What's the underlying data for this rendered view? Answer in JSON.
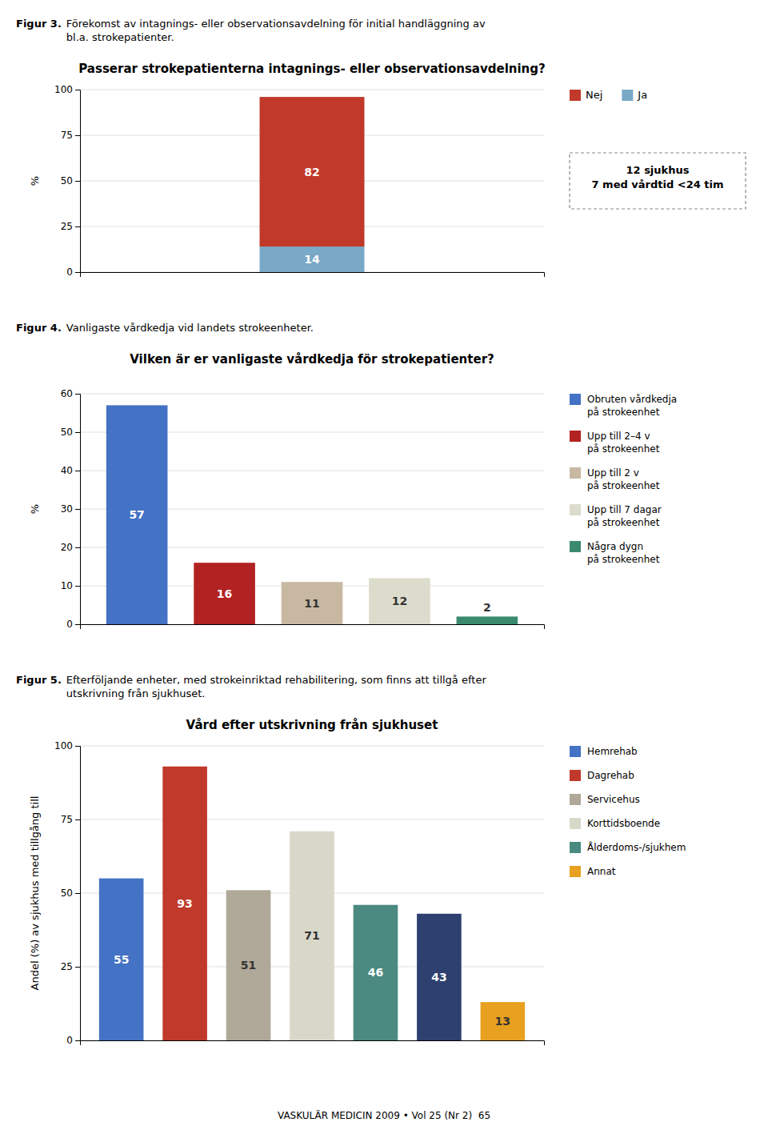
{
  "chart_data": [
    {
      "type": "bar",
      "stacked": true,
      "figure_label": "Figur 3.",
      "caption": "Förekomst av intagnings- eller observationsavdelning för initial handläggning av\nbl.a. strokepatienter.",
      "title": "Passerar strokepatienterna intagnings- eller observationsavdelning?",
      "ylabel": "%",
      "categories": [
        null
      ],
      "series": [
        {
          "name": "Ja",
          "color": "#7aa8c7",
          "values": [
            14
          ]
        },
        {
          "name": "Nej",
          "color": "#c0392b",
          "values": [
            82
          ]
        }
      ],
      "ylim": [
        0,
        100
      ],
      "yticks": [
        0,
        25,
        50,
        75,
        100
      ],
      "grid": true,
      "data_labels": true,
      "tick_labels": "y",
      "legend": "upper right",
      "annotations": [
        "12 sjukhus\n7 med vårdtid <24 tim"
      ]
    },
    {
      "type": "bar",
      "figure_label": "Figur 4.",
      "caption": "Vanligaste vårdkedja vid landets strokeenheter.",
      "title": "Vilken är er vanligaste vårdkedja för strokepatienter?",
      "ylabel": "%",
      "categories": [
        "Obruten vårdkedja\npå strokeenhet",
        "Upp till 2–4 v\npå strokeenhet",
        "Upp till 2 v\npå strokeenhet",
        "Upp till 7 dagar\npå strokeenhet",
        "Några dygn\npå strokeenhet"
      ],
      "values": [
        57,
        16,
        11,
        12,
        2
      ],
      "colors": [
        "#4472c4",
        "#b22222",
        "#c8b8a2",
        "#dcdccc",
        "#3a8a6e"
      ],
      "ylim": [
        0,
        60
      ],
      "yticks": [
        0,
        10,
        20,
        30,
        40,
        50,
        60
      ],
      "grid": true,
      "data_labels": true,
      "tick_labels": "y",
      "legend": "upper right"
    },
    {
      "type": "bar",
      "figure_label": "Figur 5.",
      "caption": "Efterföljande enheter, med strokeinriktad rehabilitering, som finns att tillgå efter\nutskrivning från sjukhuset.",
      "title": "Vård efter utskrivning från sjukhuset",
      "ylabel": "Andel (%) av sjukhus med tillgång till",
      "categories": [
        "Hemrehab",
        "Dagrehab",
        "Servicehus",
        "Korttidsboende",
        "Ålderdoms-/sjukhem",
        null,
        "Annat"
      ],
      "values": [
        55,
        93,
        51,
        71,
        46,
        43,
        13
      ],
      "colors": [
        "#4472c4",
        "#c0392b",
        "#b0a898",
        "#d8d8c8",
        "#4a8a80",
        "#2e4070",
        "#e8a020"
      ],
      "ylim": [
        0,
        100
      ],
      "yticks": [
        0,
        25,
        50,
        75,
        100
      ],
      "grid": true,
      "data_labels": true,
      "tick_labels": "y",
      "legend": "upper right"
    }
  ],
  "footer": "VASKULÄR MEDICIN 2009 • Vol 25 (Nr 2)  65"
}
